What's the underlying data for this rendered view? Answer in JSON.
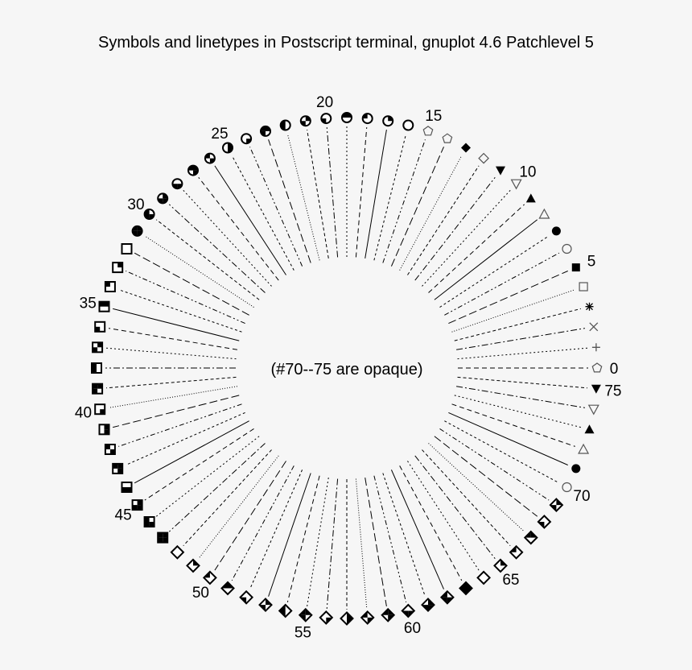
{
  "title": "Symbols and linetypes in Postscript terminal, gnuplot 4.6 Patchlevel 5",
  "center_note": "(#70--75 are opaque)",
  "symbol_count": 76,
  "index_labels": [
    "0",
    "5",
    "10",
    "15",
    "20",
    "25",
    "30",
    "35",
    "40",
    "45",
    "50",
    "55",
    "60",
    "65",
    "70",
    "75"
  ],
  "colors": {
    "background": "#f6f6f6",
    "ink": "#000000",
    "open_symbol": "#555555"
  }
}
